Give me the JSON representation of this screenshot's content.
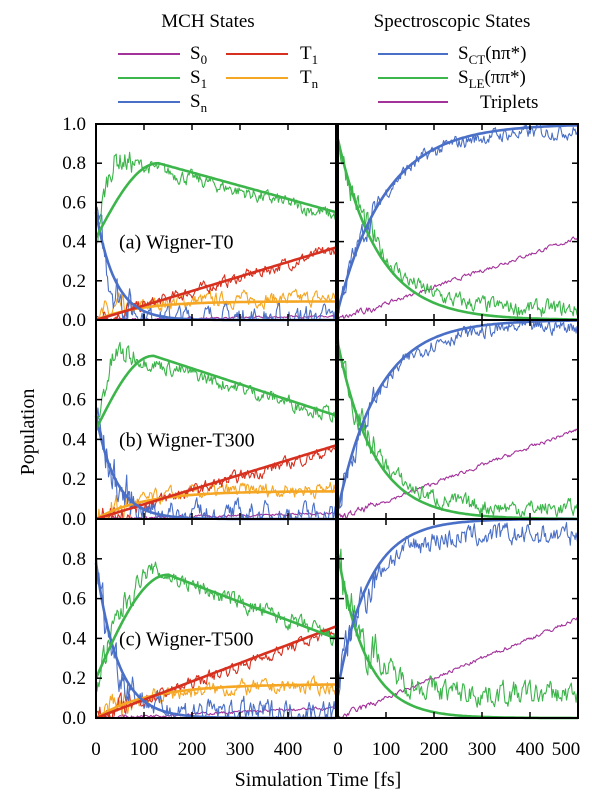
{
  "legend": {
    "mch_heading": "MCH States",
    "spec_heading": "Spectroscopic States",
    "items": [
      {
        "key": "S0",
        "base": "S",
        "sub": "0",
        "suffix": "",
        "color": "#a3329b"
      },
      {
        "key": "S1",
        "base": "S",
        "sub": "1",
        "suffix": "",
        "color": "#3cb54a"
      },
      {
        "key": "Sn",
        "base": "S",
        "sub": "n",
        "suffix": "",
        "color": "#4a6fc6"
      },
      {
        "key": "T1",
        "base": "T",
        "sub": "1",
        "suffix": "",
        "color": "#d7301f"
      },
      {
        "key": "Tn",
        "base": "T",
        "sub": "n",
        "suffix": "",
        "color": "#f5a623"
      },
      {
        "key": "SCT",
        "base": "S",
        "sub": "CT",
        "suffix": "(nπ*)",
        "color": "#4a6fc6"
      },
      {
        "key": "SLE",
        "base": "S",
        "sub": "LE",
        "suffix": "(ππ*)",
        "color": "#3cb54a"
      },
      {
        "key": "Trip",
        "base": "Triplets",
        "sub": "",
        "suffix": "",
        "color": "#a3329b"
      }
    ]
  },
  "chart_data": {
    "type": "line",
    "xlabel": "Simulation Time [fs]",
    "ylabel": "Population",
    "xlim": [
      0,
      500
    ],
    "ylim": [
      0,
      1.0
    ],
    "x_ticks": [
      0,
      100,
      200,
      300,
      400,
      500
    ],
    "x_ticks_left_panel": [
      0,
      100,
      200,
      300,
      400
    ],
    "y_ticks_top_row": [
      "0.0",
      "0.2",
      "0.4",
      "0.6",
      "0.8",
      "1.0"
    ],
    "y_ticks_lower_rows": [
      "0.0",
      "0.2",
      "0.4",
      "0.6",
      "0.8"
    ],
    "grid": false,
    "rows": [
      {
        "label": "(a) Wigner-T0",
        "mch": {
          "S1_fit": {
            "kind": "risedecay",
            "y0": 0.42,
            "peak": 0.8,
            "tpeak": 130,
            "yend": 0.55
          },
          "S1_raw": {
            "kind": "risedecay",
            "y0": 0.4,
            "peak": 0.82,
            "tpeak": 45,
            "yend": 0.53,
            "noise": 0.03
          },
          "Sn_fit": {
            "kind": "decay",
            "y0": 0.55,
            "tau": 40,
            "floor": 0.0
          },
          "Sn_raw": {
            "kind": "decay",
            "y0": 0.58,
            "tau": 30,
            "floor": 0.01,
            "noise": 0.05
          },
          "T1_fit": {
            "kind": "linear",
            "y0": 0.0,
            "y500": 0.37
          },
          "T1_raw": {
            "kind": "linear",
            "y0": 0.0,
            "y500": 0.36,
            "noise": 0.025
          },
          "Tn_fit": {
            "kind": "rise",
            "ymax": 0.095,
            "tau": 90
          },
          "Tn_raw": {
            "kind": "rise",
            "ymax": 0.11,
            "tau": 90,
            "noise": 0.03
          },
          "S0_raw": {
            "kind": "linear",
            "y0": 0.0,
            "y500": 0.02,
            "noise": 0.004
          }
        },
        "spec": {
          "SCT_fit": {
            "kind": "rise",
            "ymin": 0.05,
            "ymax": 1.0,
            "tau": 100
          },
          "SCT_raw": {
            "kind": "rise",
            "ymin": 0.05,
            "ymax": 0.97,
            "tau": 95,
            "noise": 0.03
          },
          "SLE_fit": {
            "kind": "decay",
            "y0": 0.92,
            "tau": 85,
            "floor": 0.0
          },
          "SLE_raw": {
            "kind": "decay",
            "y0": 0.92,
            "tau": 85,
            "floor": 0.05,
            "noise": 0.035
          },
          "Trip_raw": {
            "kind": "linear",
            "y0": 0.0,
            "y500": 0.42,
            "noise": 0.008
          }
        }
      },
      {
        "label": "(b) Wigner-T300",
        "mch": {
          "S1_fit": {
            "kind": "risedecay",
            "y0": 0.45,
            "peak": 0.82,
            "tpeak": 120,
            "yend": 0.52
          },
          "S1_raw": {
            "kind": "risedecay",
            "y0": 0.45,
            "peak": 0.83,
            "tpeak": 50,
            "yend": 0.52,
            "noise": 0.03
          },
          "Sn_fit": {
            "kind": "decay",
            "y0": 0.52,
            "tau": 42,
            "floor": 0.0
          },
          "Sn_raw": {
            "kind": "decay",
            "y0": 0.55,
            "tau": 35,
            "floor": 0.02,
            "noise": 0.05
          },
          "T1_fit": {
            "kind": "linear",
            "y0": 0.0,
            "y500": 0.37
          },
          "T1_raw": {
            "kind": "linear",
            "y0": 0.0,
            "y500": 0.35,
            "noise": 0.025
          },
          "Tn_fit": {
            "kind": "rise",
            "ymax": 0.14,
            "tau": 100
          },
          "Tn_raw": {
            "kind": "rise",
            "ymax": 0.15,
            "tau": 100,
            "noise": 0.03
          },
          "S0_raw": {
            "kind": "linear",
            "y0": 0.0,
            "y500": 0.03,
            "noise": 0.005
          }
        },
        "spec": {
          "SCT_fit": {
            "kind": "rise",
            "ymin": 0.05,
            "ymax": 1.0,
            "tau": 85
          },
          "SCT_raw": {
            "kind": "rise",
            "ymin": 0.05,
            "ymax": 0.97,
            "tau": 85,
            "noise": 0.03
          },
          "SLE_fit": {
            "kind": "decay",
            "y0": 0.88,
            "tau": 75,
            "floor": 0.0
          },
          "SLE_raw": {
            "kind": "decay",
            "y0": 0.88,
            "tau": 75,
            "floor": 0.05,
            "noise": 0.035
          },
          "Trip_raw": {
            "kind": "linear",
            "y0": 0.0,
            "y500": 0.45,
            "noise": 0.008
          }
        }
      },
      {
        "label": "(c) Wigner-T500",
        "mch": {
          "S1_fit": {
            "kind": "risedecay",
            "y0": 0.2,
            "peak": 0.72,
            "tpeak": 150,
            "yend": 0.4
          },
          "S1_raw": {
            "kind": "risedecay",
            "y0": 0.18,
            "peak": 0.74,
            "tpeak": 120,
            "yend": 0.4,
            "noise": 0.035
          },
          "Sn_fit": {
            "kind": "decay",
            "y0": 0.78,
            "tau": 45,
            "floor": 0.0
          },
          "Sn_raw": {
            "kind": "decay",
            "y0": 0.8,
            "tau": 40,
            "floor": 0.03,
            "noise": 0.05
          },
          "T1_fit": {
            "kind": "linear",
            "y0": 0.0,
            "y500": 0.46
          },
          "T1_raw": {
            "kind": "linear",
            "y0": 0.0,
            "y500": 0.44,
            "noise": 0.025
          },
          "Tn_fit": {
            "kind": "rise",
            "ymax": 0.17,
            "tau": 110
          },
          "Tn_raw": {
            "kind": "rise",
            "ymax": 0.16,
            "tau": 110,
            "noise": 0.03
          },
          "S0_raw": {
            "kind": "linear",
            "y0": 0.0,
            "y500": 0.05,
            "noise": 0.006
          }
        },
        "spec": {
          "SCT_fit": {
            "kind": "rise",
            "ymin": 0.15,
            "ymax": 1.0,
            "tau": 65
          },
          "SCT_raw": {
            "kind": "rise",
            "ymin": 0.15,
            "ymax": 0.92,
            "tau": 60,
            "noise": 0.045
          },
          "SLE_fit": {
            "kind": "decay",
            "y0": 0.82,
            "tau": 60,
            "floor": 0.0
          },
          "SLE_raw": {
            "kind": "decay",
            "y0": 0.82,
            "tau": 60,
            "floor": 0.12,
            "noise": 0.05
          },
          "Trip_raw": {
            "kind": "linear",
            "y0": 0.0,
            "y500": 0.5,
            "noise": 0.008
          }
        }
      }
    ]
  }
}
